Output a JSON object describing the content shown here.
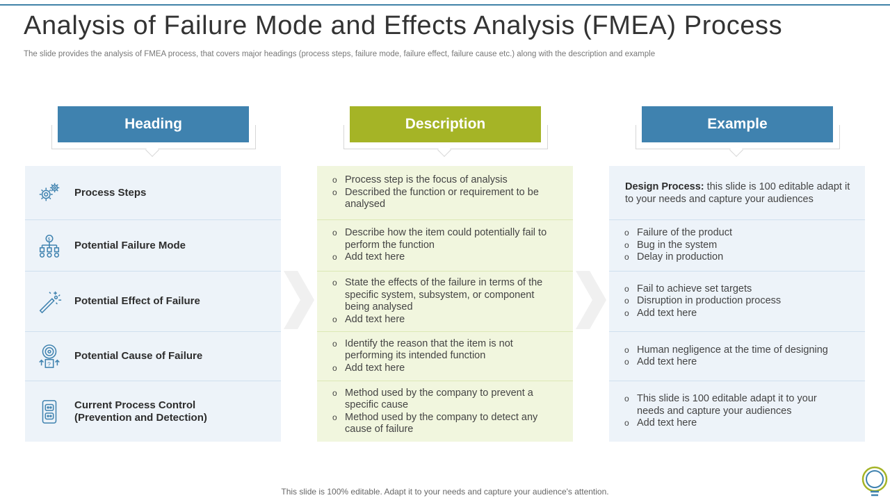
{
  "slide": {
    "title": "Analysis of Failure Mode and Effects Analysis (FMEA) Process",
    "subtitle": "The slide provides the analysis of FMEA  process, that covers major headings (process steps, failure mode, failure effect, failure cause etc.) along with the description and example",
    "footer": "This slide is 100% editable. Adapt it to your needs and capture your audience's attention."
  },
  "columns": {
    "heading": {
      "label": "Heading",
      "color": "#3f82af"
    },
    "description": {
      "label": "Description",
      "color": "#a5b426"
    },
    "example": {
      "label": "Example",
      "color": "#3f82af"
    }
  },
  "rows": [
    {
      "heading": "Process Steps",
      "icon": "gears-icon",
      "description": [
        "Process step is the focus of analysis",
        "Described the function or requirement to be analysed"
      ],
      "example_bold": "Design Process:",
      "example_text": " this slide is 100 editable adapt it to your needs and capture your audiences"
    },
    {
      "heading": "Potential Failure Mode",
      "icon": "money-hierarchy-icon",
      "description": [
        "Describe how the item could potentially fail to perform the function",
        "Add text here"
      ],
      "example": [
        "Failure of the product",
        "Bug in the system",
        "Delay in production"
      ]
    },
    {
      "heading": "Potential Effect of Failure",
      "icon": "magic-wand-icon",
      "description": [
        "State the effects of the failure in terms of the specific system, subsystem, or component being analysed",
        "Add text here"
      ],
      "example": [
        "Fail to achieve set targets",
        "Disruption in production process",
        "Add text here"
      ]
    },
    {
      "heading": "Potential Cause of Failure",
      "icon": "target-question-icon",
      "description": [
        "Identify the reason that the item is not performing its intended function",
        "Add text here"
      ],
      "example": [
        "Human negligence at the time of designing",
        "Add text here"
      ]
    },
    {
      "heading_line1": "Current Process Control",
      "heading_line2": "(Prevention and Detection)",
      "icon": "control-panel-icon",
      "description": [
        "Method  used by the company to prevent a specific cause",
        "Method  used by the company to detect any cause of failure"
      ],
      "example": [
        "This slide is 100 editable adapt it to your needs and capture your audiences",
        "Add text here"
      ]
    }
  ]
}
